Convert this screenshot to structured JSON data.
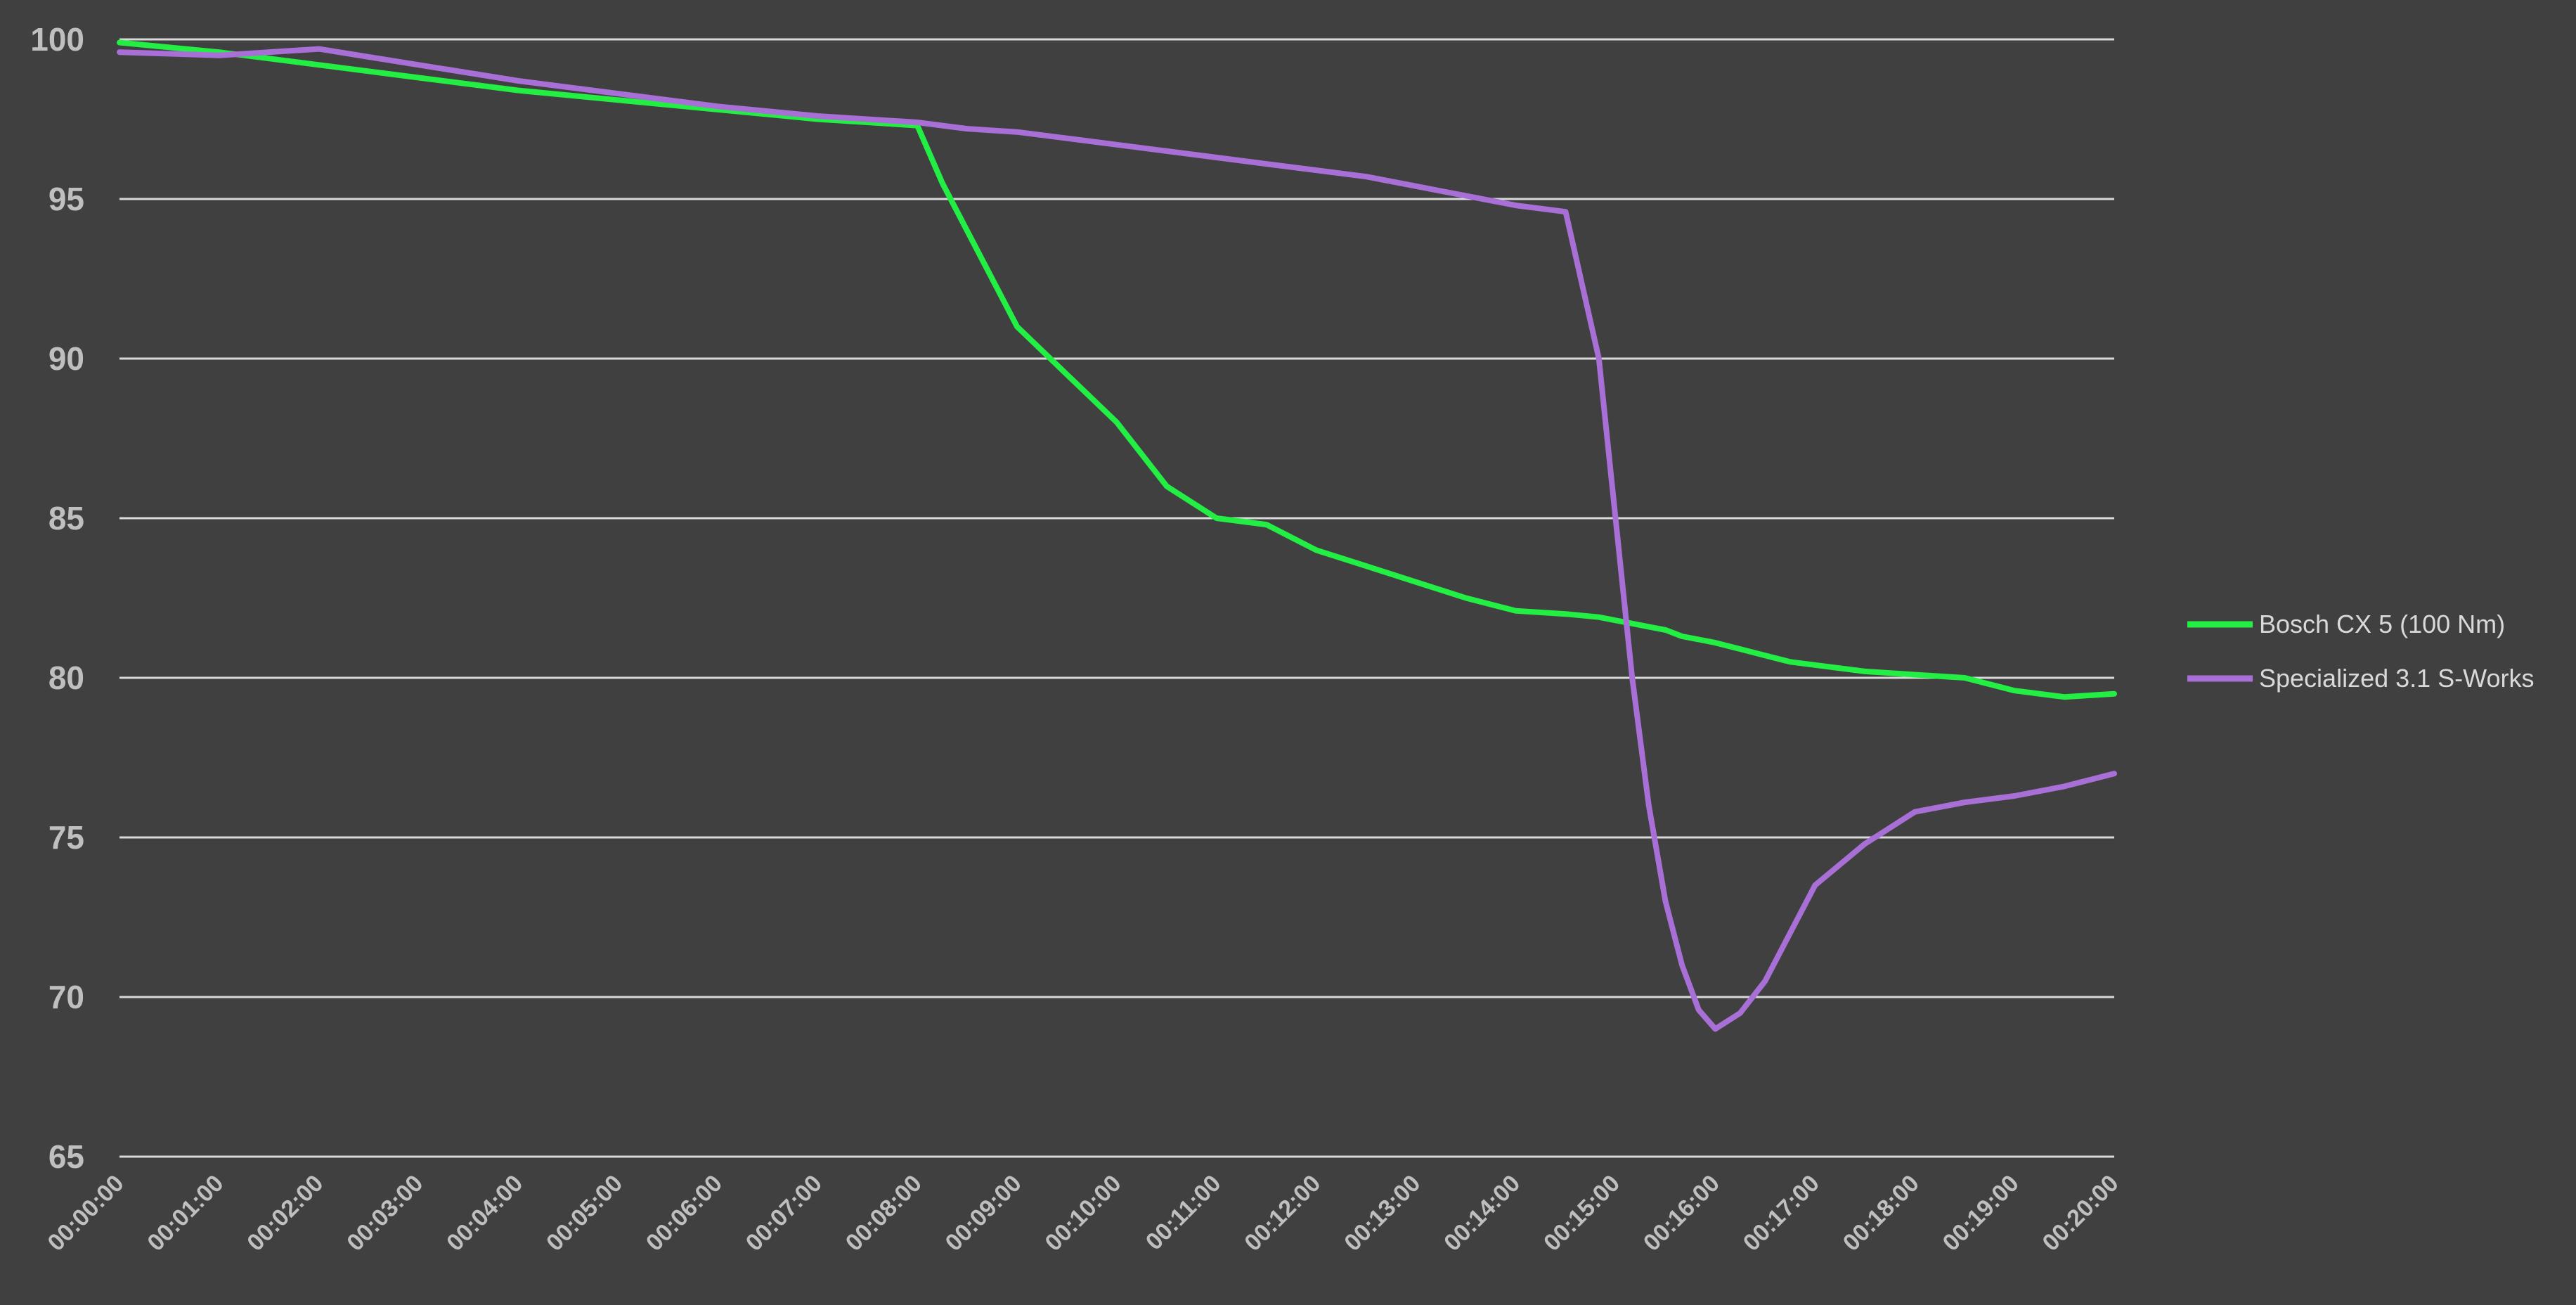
{
  "chart_data": {
    "type": "line",
    "title": "",
    "xlabel": "",
    "ylabel": "",
    "ylim": [
      65,
      100
    ],
    "yticks": [
      65,
      70,
      75,
      80,
      85,
      90,
      95,
      100
    ],
    "grid": true,
    "legend_position": "right",
    "x_tick_labels": [
      "00:00:00",
      "00:01:00",
      "00:02:00",
      "00:03:00",
      "00:04:00",
      "00:05:00",
      "00:06:00",
      "00:07:00",
      "00:08:00",
      "00:09:00",
      "00:10:00",
      "00:11:00",
      "00:12:00",
      "00:13:00",
      "00:14:00",
      "00:15:00",
      "00:16:00",
      "00:17:00",
      "00:18:00",
      "00:19:00",
      "00:20:00"
    ],
    "x": [
      "00:00:00",
      "00:01:00",
      "00:02:00",
      "00:03:00",
      "00:04:00",
      "00:05:00",
      "00:06:00",
      "00:07:00",
      "00:08:00",
      "00:08:15",
      "00:08:30",
      "00:09:00",
      "00:09:30",
      "00:10:00",
      "00:10:30",
      "00:11:00",
      "00:11:30",
      "00:12:00",
      "00:12:30",
      "00:13:00",
      "00:13:30",
      "00:14:00",
      "00:14:30",
      "00:14:50",
      "00:15:00",
      "00:15:10",
      "00:15:20",
      "00:15:30",
      "00:15:40",
      "00:15:50",
      "00:16:00",
      "00:16:15",
      "00:16:30",
      "00:16:45",
      "00:17:00",
      "00:17:30",
      "00:18:00",
      "00:18:30",
      "00:19:00",
      "00:19:30",
      "00:20:00"
    ],
    "series": [
      {
        "name": "Bosch CX 5 (100 Nm)",
        "color": "#22ee44",
        "values": [
          99.9,
          99.6,
          99.2,
          98.8,
          98.4,
          98.1,
          97.8,
          97.5,
          97.3,
          95.5,
          94.0,
          91.0,
          89.5,
          88.0,
          86.0,
          85.0,
          84.8,
          84.0,
          83.5,
          83.0,
          82.5,
          82.1,
          82.0,
          81.9,
          81.8,
          81.7,
          81.6,
          81.5,
          81.3,
          81.2,
          81.1,
          80.9,
          80.7,
          80.5,
          80.4,
          80.2,
          80.1,
          80.0,
          79.6,
          79.4,
          79.5
        ]
      },
      {
        "name": "Specialized  3.1 S-Works",
        "color": "#a86fd6",
        "values": [
          99.6,
          99.5,
          99.7,
          99.2,
          98.7,
          98.3,
          97.9,
          97.6,
          97.4,
          97.3,
          97.2,
          97.1,
          96.9,
          96.7,
          96.5,
          96.3,
          96.1,
          95.9,
          95.7,
          95.4,
          95.1,
          94.8,
          94.6,
          90.0,
          85.0,
          80.0,
          76.0,
          73.0,
          71.0,
          69.6,
          69.0,
          69.5,
          70.5,
          72.0,
          73.5,
          74.8,
          75.8,
          76.1,
          76.3,
          76.6,
          77.0
        ]
      }
    ]
  }
}
